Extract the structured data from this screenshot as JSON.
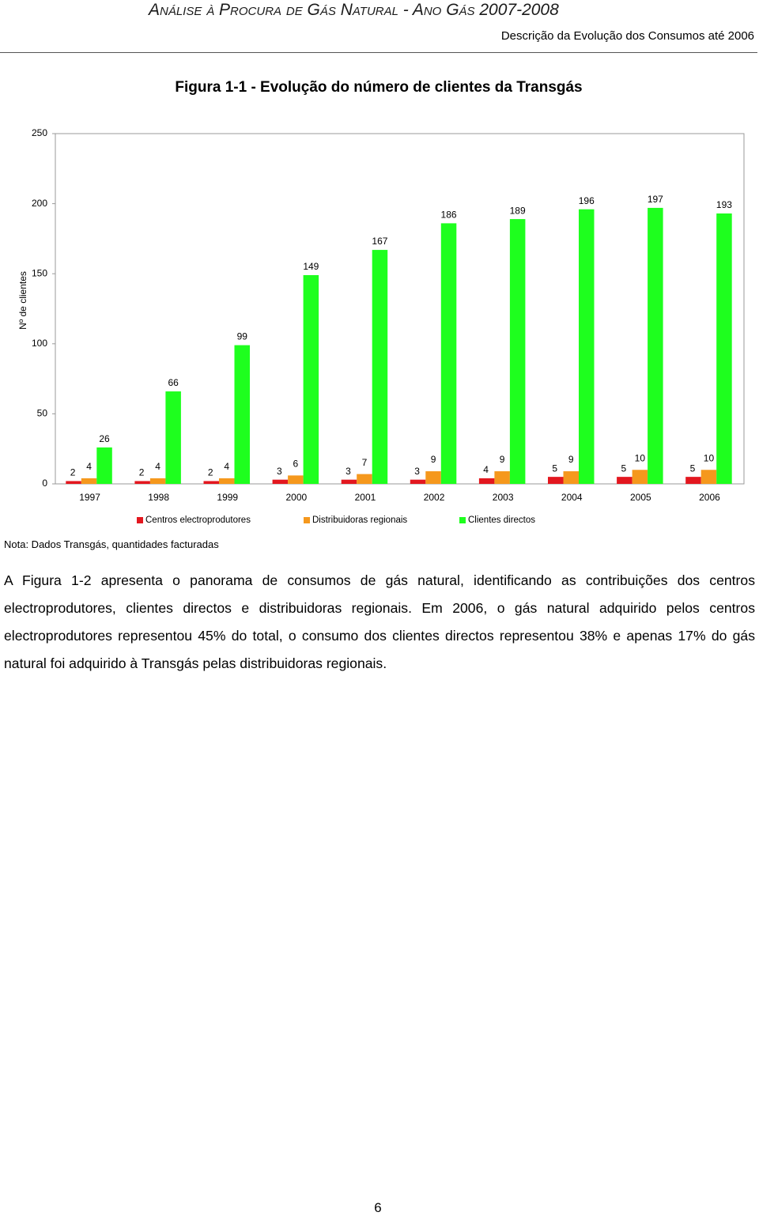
{
  "header": {
    "title": "Análise à Procura de Gás Natural - Ano Gás 2007-2008",
    "subtitle": "Descrição da Evolução dos Consumos até 2006"
  },
  "chart_data": {
    "type": "bar",
    "title": "Figura 1-1 - Evolução do número de clientes da Transgás",
    "y_label": "Nº de clientes",
    "categories": [
      "1997",
      "1998",
      "1999",
      "2000",
      "2001",
      "2002",
      "2003",
      "2004",
      "2005",
      "2006"
    ],
    "series": [
      {
        "name": "Centros electroprodutores",
        "color": "#e3171f",
        "values": [
          2,
          2,
          2,
          3,
          3,
          3,
          4,
          5,
          5,
          5
        ]
      },
      {
        "name": "Distribuidoras regionais",
        "color": "#f5981d",
        "values": [
          4,
          4,
          4,
          6,
          7,
          9,
          9,
          9,
          10,
          10
        ]
      },
      {
        "name": "Clientes directos",
        "color": "#1eff1e",
        "values": [
          26,
          66,
          99,
          149,
          167,
          186,
          189,
          196,
          197,
          193
        ]
      }
    ],
    "ylim": [
      0,
      250
    ],
    "yticks": [
      0,
      50,
      100,
      150,
      200,
      250
    ],
    "grid": false,
    "legend": "bottom"
  },
  "note": "Nota: Dados Transgás, quantidades facturadas",
  "paragraph": "A Figura 1-2 apresenta o panorama de consumos de gás natural, identificando as contribuições dos centros electroprodutores, clientes directos e distribuidoras regionais. Em 2006, o gás natural adquirido pelos centros electroprodutores representou 45% do total, o consumo dos clientes directos representou 38% e apenas 17% do gás natural foi adquirido à Transgás pelas distribuidoras regionais.",
  "page_number": "6"
}
